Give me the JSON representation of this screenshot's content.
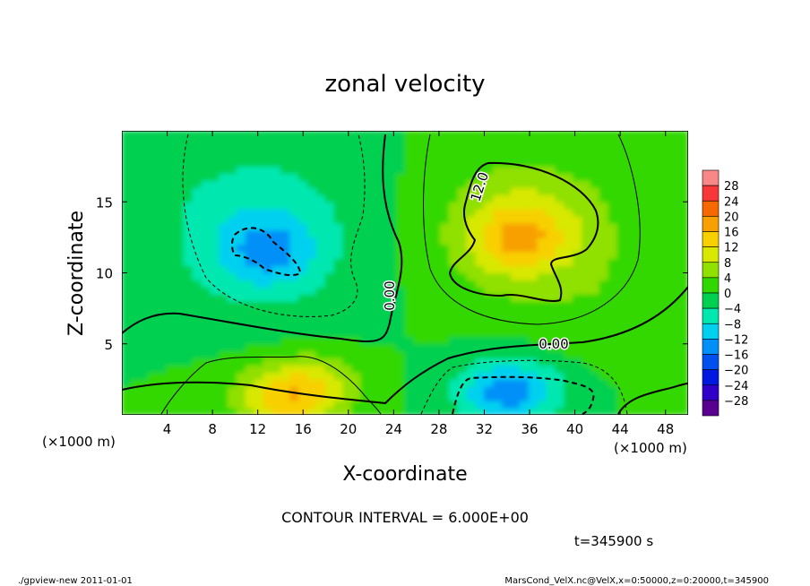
{
  "chart_data": {
    "type": "heatmap",
    "title": "zonal velocity",
    "xlabel": "X-coordinate",
    "ylabel": "Z-coordinate",
    "x_scale_note": "(×1000 m)",
    "y_scale_note": "(×1000 m)",
    "xlim": [
      0,
      50
    ],
    "ylim": [
      0,
      20
    ],
    "x_ticks": [
      4,
      8,
      12,
      16,
      20,
      24,
      28,
      32,
      36,
      40,
      44,
      48
    ],
    "y_ticks": [
      5,
      10,
      15
    ],
    "x_tick_labels": [
      "4",
      "8",
      "12",
      "16",
      "20",
      "24",
      "28",
      "32",
      "36",
      "40",
      "44",
      "48"
    ],
    "y_tick_labels": [
      "5",
      "10",
      "15"
    ],
    "colorbar": {
      "levels": [
        -32,
        -28,
        -24,
        -20,
        -16,
        -12,
        -8,
        -4,
        0,
        4,
        8,
        12,
        16,
        20,
        24,
        28,
        32
      ],
      "tick_labels": [
        "28",
        "24",
        "20",
        "16",
        "12",
        "8",
        "4",
        "0",
        "−4",
        "−8",
        "−12",
        "−16",
        "−20",
        "−24",
        "−28"
      ],
      "colors": [
        "#5a0090",
        "#3000c8",
        "#0018e0",
        "#0050f0",
        "#0090f8",
        "#00d0f0",
        "#00e8b0",
        "#00d050",
        "#30d800",
        "#90e000",
        "#d8e800",
        "#f8d000",
        "#f8a000",
        "#f86800",
        "#f83838",
        "#f88888"
      ]
    },
    "contour_interval_text": "CONTOUR INTERVAL = 6.000E+00",
    "contour_labels": [
      "12.0",
      "0.00",
      "0.00"
    ],
    "features": [
      {
        "kind": "max",
        "x": 35,
        "z": 12.5,
        "value": 16
      },
      {
        "kind": "min",
        "x": 13,
        "z": 11.5,
        "value": -14
      },
      {
        "kind": "min",
        "x": 34,
        "z": 1.5,
        "value": -18
      },
      {
        "kind": "max",
        "x": 14,
        "z": 0.5,
        "value": 13
      },
      {
        "kind": "max",
        "x": 16.5,
        "z": 2.0,
        "value": 13
      }
    ],
    "time_text": "t=345900 s"
  },
  "footer": {
    "left": "./gpview-new  2011-01-01",
    "right": "MarsCond_VelX.nc@VelX,x=0:50000,z=0:20000,t=345900"
  }
}
